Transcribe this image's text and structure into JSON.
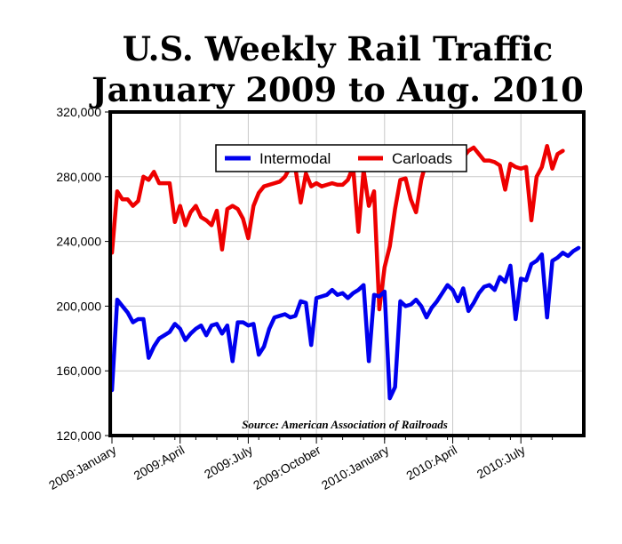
{
  "chart_data": {
    "type": "line",
    "title": "U.S. Weekly Rail Traffic",
    "subtitle": "January 2009 to Aug. 2010",
    "source": "Source: American Association of Railroads",
    "ylim": [
      120000,
      320000
    ],
    "y_ticks": [
      "120,000",
      "160,000",
      "200,000",
      "240,000",
      "280,000",
      "320,000"
    ],
    "y_tick_values": [
      120000,
      160000,
      200000,
      240000,
      280000,
      320000
    ],
    "x_tick_labels": [
      "2009:January",
      "2009:April",
      "2009:July",
      "2009:October",
      "2010:January",
      "2010:April",
      "2010:July"
    ],
    "x_tick_weeks": [
      0,
      13,
      26,
      39,
      52,
      65,
      78
    ],
    "grid": true,
    "legend_placement": "top-center",
    "series": [
      {
        "name": "Intermodal",
        "color": "#0000ee",
        "values": [
          148000,
          204000,
          200000,
          196000,
          190000,
          192000,
          192000,
          168000,
          175000,
          180000,
          182000,
          184000,
          189000,
          186000,
          179000,
          183000,
          186000,
          188000,
          182000,
          188000,
          189000,
          183000,
          188000,
          166000,
          190000,
          190000,
          188000,
          189000,
          170000,
          175000,
          186000,
          193000,
          194000,
          195000,
          193000,
          194000,
          203000,
          202000,
          176000,
          205000,
          206000,
          207000,
          210000,
          207000,
          208000,
          205000,
          208000,
          210000,
          213000,
          166000,
          207000,
          206000,
          209000,
          143000,
          150000,
          203000,
          200000,
          201000,
          204000,
          200000,
          193000,
          199000,
          203000,
          208000,
          213000,
          210000,
          203000,
          211000,
          197000,
          202000,
          208000,
          212000,
          213000,
          210000,
          218000,
          215000,
          225000,
          192000,
          217000,
          216000,
          226000,
          228000,
          232000,
          193000,
          228000,
          230000,
          233000,
          231000,
          234000,
          236000
        ]
      },
      {
        "name": "Carloads",
        "color": "#ee0000",
        "values": [
          233000,
          271000,
          266000,
          266000,
          262000,
          265000,
          280000,
          278000,
          283000,
          276000,
          276000,
          276000,
          252000,
          262000,
          250000,
          258000,
          262000,
          255000,
          253000,
          250000,
          259000,
          235000,
          260000,
          262000,
          260000,
          254000,
          242000,
          262000,
          270000,
          274000,
          275000,
          276000,
          277000,
          280000,
          286000,
          285000,
          264000,
          282000,
          274000,
          276000,
          274000,
          275000,
          276000,
          275000,
          275000,
          278000,
          286000,
          246000,
          284000,
          262000,
          271000,
          198000,
          224000,
          237000,
          260000,
          278000,
          279000,
          266000,
          258000,
          278000,
          290000,
          285000,
          286000,
          287000,
          291000,
          292000,
          290000,
          292000,
          296000,
          298000,
          294000,
          290000,
          290000,
          289000,
          287000,
          272000,
          288000,
          286000,
          285000,
          286000,
          253000,
          280000,
          286000,
          299000,
          285000,
          294000,
          296000
        ]
      }
    ]
  }
}
